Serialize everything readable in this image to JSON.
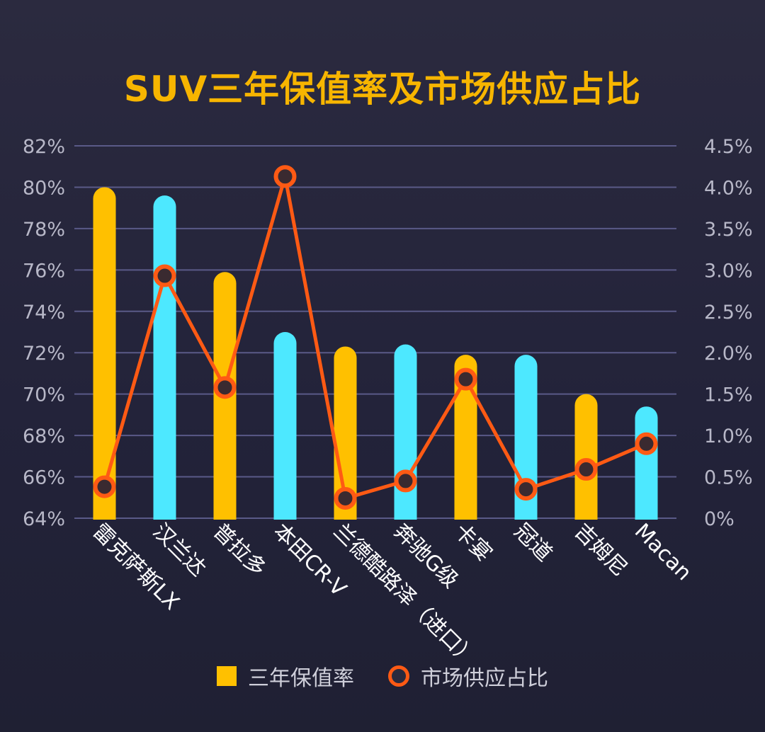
{
  "chart_data": {
    "type": "bar",
    "title": "SUV三年保值率及市场供应占比",
    "categories": [
      "雷克萨斯LX",
      "汉兰达",
      "普拉多",
      "本田CR-V",
      "兰德酷路泽（进口）",
      "奔驰G级",
      "卡宴",
      "冠道",
      "吉姆尼",
      "Macan"
    ],
    "series": [
      {
        "name": "三年保值率",
        "type": "bar",
        "axis": "left",
        "unit": "%",
        "values": [
          80.0,
          79.6,
          75.9,
          73.0,
          72.3,
          72.4,
          71.9,
          71.9,
          70.0,
          69.4
        ],
        "colors": [
          "#ffc000",
          "#4de8ff",
          "#ffc000",
          "#4de8ff",
          "#ffc000",
          "#4de8ff",
          "#ffc000",
          "#4de8ff",
          "#ffc000",
          "#4de8ff"
        ]
      },
      {
        "name": "市场供应占比",
        "type": "line",
        "axis": "right",
        "unit": "%",
        "values": [
          0.38,
          2.93,
          1.58,
          4.13,
          0.24,
          0.45,
          1.68,
          0.35,
          0.59,
          0.9
        ],
        "color": "#ff5a14"
      }
    ],
    "left_axis": {
      "ylim": [
        64,
        82
      ],
      "ticks": [
        "64%",
        "66%",
        "68%",
        "70%",
        "72%",
        "74%",
        "76%",
        "78%",
        "80%",
        "82%"
      ]
    },
    "right_axis": {
      "ylim": [
        0,
        4.5
      ],
      "ticks": [
        "0%",
        "0.5%",
        "1.0%",
        "1.5%",
        "2.0%",
        "2.5%",
        "3.0%",
        "3.5%",
        "4.0%",
        "4.5%"
      ]
    },
    "grid": true,
    "legend_position": "bottom"
  },
  "colors": {
    "bar_gold": "#ffc000",
    "bar_cyan": "#4de8ff",
    "line": "#ff5a14",
    "title": "#f7b500",
    "grid": "#5a5a88"
  }
}
